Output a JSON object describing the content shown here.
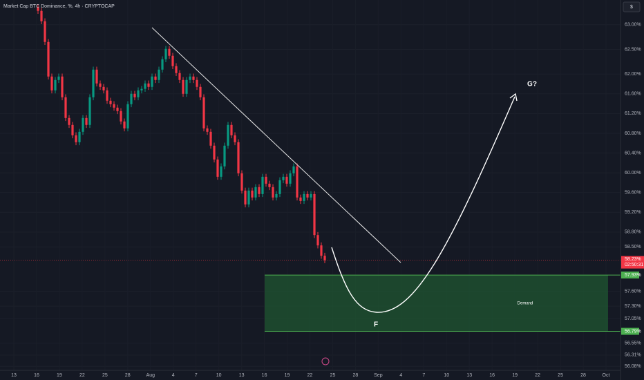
{
  "chart_data": {
    "type": "candlestick",
    "title": "Market Cap BTC Dominance, %, 4h · CRYPTOCAP",
    "currency_button": "$",
    "up_color": "#089981",
    "down_color": "#f23645",
    "ylim": [
      56.0,
      63.5
    ],
    "yticks": [
      {
        "value": 63.0,
        "label": "63.00%"
      },
      {
        "value": 62.5,
        "label": "62.50%"
      },
      {
        "value": 62.0,
        "label": "62.00%"
      },
      {
        "value": 61.6,
        "label": "61.60%"
      },
      {
        "value": 61.2,
        "label": "61.20%"
      },
      {
        "value": 60.8,
        "label": "60.80%"
      },
      {
        "value": 60.4,
        "label": "60.40%"
      },
      {
        "value": 60.0,
        "label": "60.00%"
      },
      {
        "value": 59.6,
        "label": "59.60%"
      },
      {
        "value": 59.2,
        "label": "59.20%"
      },
      {
        "value": 58.8,
        "label": "58.80%"
      },
      {
        "value": 58.5,
        "label": "58.50%"
      },
      {
        "value": 57.6,
        "label": "57.60%"
      },
      {
        "value": 57.3,
        "label": "57.30%"
      },
      {
        "value": 57.05,
        "label": "57.05%"
      },
      {
        "value": 56.55,
        "label": "56.55%"
      },
      {
        "value": 56.31,
        "label": "56.31%"
      },
      {
        "value": 56.08,
        "label": "56.08%"
      }
    ],
    "x_labels": [
      "13",
      "16",
      "19",
      "22",
      "25",
      "28",
      "Aug",
      "4",
      "7",
      "10",
      "13",
      "16",
      "19",
      "22",
      "25",
      "28",
      "Sep",
      "4",
      "7",
      "10",
      "13",
      "16",
      "19",
      "22",
      "25",
      "28",
      "Oct"
    ],
    "ohlc": [
      [
        63.35,
        63.41,
        63.22,
        63.28
      ],
      [
        63.28,
        63.34,
        63.01,
        63.07
      ],
      [
        63.07,
        63.13,
        62.59,
        62.65
      ],
      [
        62.65,
        62.71,
        61.89,
        61.95
      ],
      [
        61.95,
        62.01,
        61.61,
        61.67
      ],
      [
        61.67,
        61.94,
        61.61,
        61.88
      ],
      [
        61.88,
        62.01,
        61.82,
        61.95
      ],
      [
        61.95,
        62.01,
        61.47,
        61.53
      ],
      [
        61.53,
        61.59,
        61.05,
        61.11
      ],
      [
        61.11,
        61.17,
        60.91,
        60.97
      ],
      [
        60.97,
        61.03,
        60.7,
        60.76
      ],
      [
        60.76,
        60.82,
        60.56,
        60.62
      ],
      [
        60.62,
        60.89,
        60.56,
        60.83
      ],
      [
        60.83,
        61.17,
        60.77,
        61.11
      ],
      [
        61.11,
        61.17,
        60.91,
        60.97
      ],
      [
        60.97,
        61.59,
        60.91,
        61.53
      ],
      [
        61.53,
        62.15,
        61.47,
        62.09
      ],
      [
        62.09,
        62.15,
        61.75,
        61.81
      ],
      [
        61.81,
        61.87,
        61.68,
        61.74
      ],
      [
        61.74,
        61.8,
        61.61,
        61.67
      ],
      [
        61.67,
        61.73,
        61.4,
        61.46
      ],
      [
        61.46,
        61.52,
        61.33,
        61.39
      ],
      [
        61.39,
        61.45,
        61.26,
        61.32
      ],
      [
        61.32,
        61.38,
        61.19,
        61.25
      ],
      [
        61.25,
        61.31,
        60.98,
        61.04
      ],
      [
        61.04,
        61.1,
        60.84,
        60.9
      ],
      [
        60.9,
        61.45,
        60.84,
        61.39
      ],
      [
        61.39,
        61.66,
        61.33,
        61.6
      ],
      [
        61.6,
        61.66,
        61.47,
        61.53
      ],
      [
        61.53,
        61.73,
        61.47,
        61.67
      ],
      [
        61.67,
        61.76,
        61.61,
        61.7
      ],
      [
        61.7,
        61.87,
        61.64,
        61.81
      ],
      [
        61.81,
        61.87,
        61.68,
        61.74
      ],
      [
        61.74,
        62.01,
        61.68,
        61.95
      ],
      [
        61.95,
        62.01,
        61.82,
        61.88
      ],
      [
        61.88,
        62.15,
        61.82,
        62.09
      ],
      [
        62.09,
        62.36,
        62.03,
        62.3
      ],
      [
        62.3,
        62.57,
        62.24,
        62.51
      ],
      [
        62.51,
        62.57,
        62.31,
        62.37
      ],
      [
        62.37,
        62.43,
        62.1,
        62.16
      ],
      [
        62.16,
        62.22,
        61.96,
        62.02
      ],
      [
        62.02,
        62.08,
        61.82,
        61.88
      ],
      [
        61.88,
        61.94,
        61.54,
        61.6
      ],
      [
        61.6,
        61.94,
        61.54,
        61.88
      ],
      [
        61.88,
        62.01,
        61.82,
        61.95
      ],
      [
        61.95,
        62.01,
        61.82,
        61.88
      ],
      [
        61.88,
        61.94,
        61.68,
        61.74
      ],
      [
        61.74,
        61.8,
        61.47,
        61.53
      ],
      [
        61.53,
        61.59,
        60.84,
        60.9
      ],
      [
        60.9,
        60.96,
        60.77,
        60.83
      ],
      [
        60.83,
        60.89,
        60.49,
        60.55
      ],
      [
        60.55,
        60.61,
        60.21,
        60.27
      ],
      [
        60.27,
        60.33,
        59.86,
        59.92
      ],
      [
        59.92,
        60.19,
        59.86,
        60.13
      ],
      [
        60.13,
        60.61,
        60.07,
        60.55
      ],
      [
        60.55,
        61.03,
        60.49,
        60.97
      ],
      [
        60.97,
        61.03,
        60.7,
        60.76
      ],
      [
        60.76,
        60.82,
        60.56,
        60.62
      ],
      [
        60.62,
        60.68,
        59.93,
        59.99
      ],
      [
        59.99,
        60.05,
        59.58,
        59.64
      ],
      [
        59.64,
        59.7,
        59.3,
        59.36
      ],
      [
        59.36,
        59.7,
        59.3,
        59.64
      ],
      [
        59.64,
        59.7,
        59.44,
        59.5
      ],
      [
        59.5,
        59.77,
        59.44,
        59.71
      ],
      [
        59.71,
        59.77,
        59.51,
        59.57
      ],
      [
        59.57,
        59.98,
        59.51,
        59.92
      ],
      [
        59.92,
        59.98,
        59.72,
        59.78
      ],
      [
        59.78,
        59.84,
        59.65,
        59.71
      ],
      [
        59.71,
        59.77,
        59.44,
        59.5
      ],
      [
        59.5,
        59.63,
        59.44,
        59.57
      ],
      [
        59.57,
        59.91,
        59.51,
        59.85
      ],
      [
        59.85,
        59.98,
        59.79,
        59.92
      ],
      [
        59.92,
        59.98,
        59.72,
        59.78
      ],
      [
        59.78,
        60.05,
        59.72,
        59.99
      ],
      [
        59.99,
        60.19,
        59.93,
        60.13
      ],
      [
        60.13,
        60.19,
        59.44,
        59.5
      ],
      [
        59.5,
        59.56,
        59.37,
        59.43
      ],
      [
        59.43,
        59.63,
        59.37,
        59.57
      ],
      [
        59.57,
        59.63,
        59.44,
        59.5
      ],
      [
        59.5,
        59.63,
        59.44,
        59.57
      ],
      [
        59.57,
        59.63,
        58.68,
        58.74
      ],
      [
        58.74,
        58.8,
        58.47,
        58.53
      ],
      [
        58.53,
        58.59,
        58.26,
        58.32
      ],
      [
        58.32,
        58.38,
        58.17,
        58.23
      ]
    ],
    "last_price": {
      "value": 58.23,
      "label": "58.23%",
      "countdown": "02:50:31",
      "color": "#f23645"
    },
    "zone": {
      "label": "Demand",
      "top": 57.93,
      "top_label": "57.93%",
      "bottom": 56.79,
      "bottom_label": "56.79%",
      "color": "#1f5a32",
      "label_color": "#4caf50"
    },
    "annotations": [
      "F",
      "G?"
    ]
  }
}
